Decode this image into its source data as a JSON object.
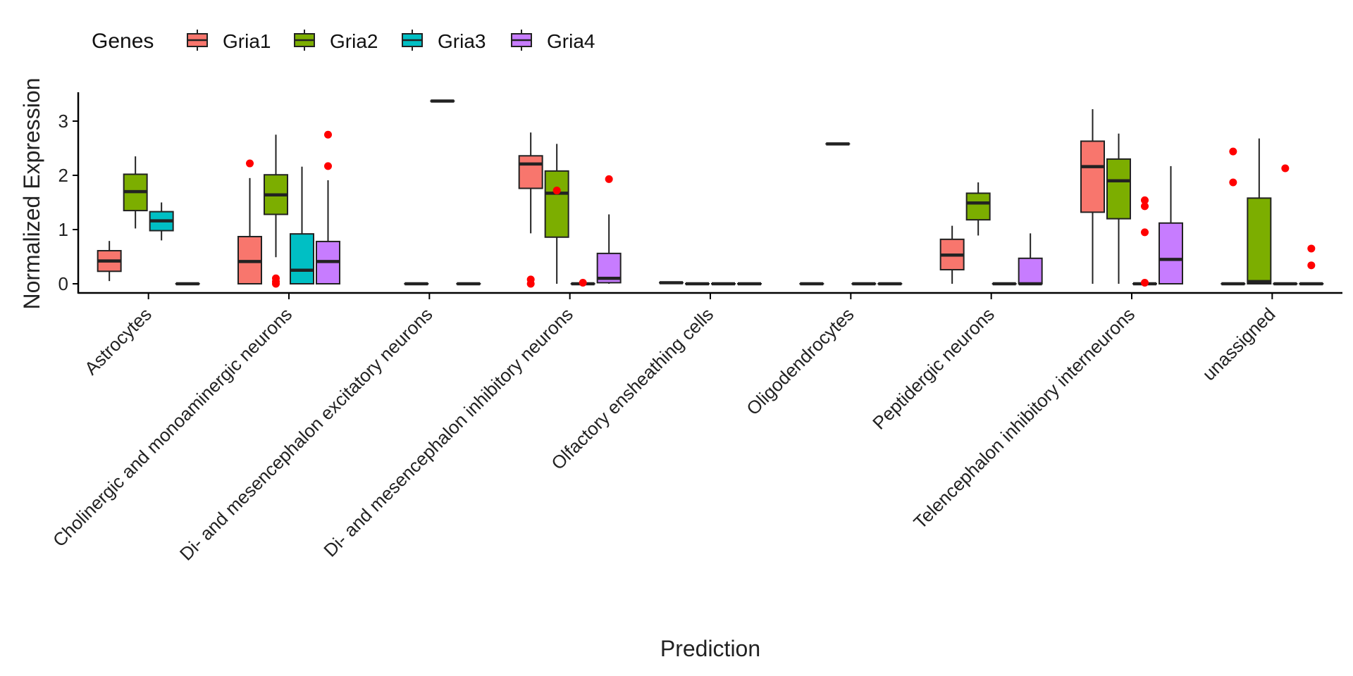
{
  "chart_data": {
    "type": "boxplot",
    "xlabel": "Prediction",
    "ylabel": "Normalized Expression",
    "ylim": [
      -0.17,
      3.55
    ],
    "yticks": [
      0,
      1,
      2,
      3
    ],
    "legend": {
      "title": "Genes",
      "position": "top-left"
    },
    "categories": [
      "Astrocytes",
      "Cholinergic and monoaminergic neurons",
      "Di- and mesencephalon excitatory neurons",
      "Di- and mesencephalon inhibitory neurons",
      "Olfactory ensheathing cells",
      "Oligodendrocytes",
      "Peptidergic neurons",
      "Telencephalon inhibitory interneurons",
      "unassigned"
    ],
    "series": [
      {
        "name": "Gria1",
        "color": "#F8766D",
        "boxes": [
          {
            "min": 0.05,
            "q1": 0.23,
            "median": 0.42,
            "q3": 0.61,
            "max": 0.79,
            "outliers": []
          },
          {
            "min": 0.0,
            "q1": 0.0,
            "median": 0.41,
            "q3": 0.87,
            "max": 1.95,
            "outliers": [
              2.22
            ]
          },
          null,
          {
            "min": 0.93,
            "q1": 1.76,
            "median": 2.21,
            "q3": 2.36,
            "max": 2.79,
            "outliers": [
              0.0,
              0.08
            ]
          },
          {
            "min": 0.02,
            "q1": 0.02,
            "median": 0.02,
            "q3": 0.02,
            "max": 0.02,
            "outliers": []
          },
          {
            "min": 0.0,
            "q1": 0.0,
            "median": 0.0,
            "q3": 0.0,
            "max": 0.0,
            "outliers": []
          },
          {
            "min": 0.0,
            "q1": 0.26,
            "median": 0.53,
            "q3": 0.82,
            "max": 1.07,
            "outliers": []
          },
          {
            "min": 0.0,
            "q1": 1.32,
            "median": 2.16,
            "q3": 2.63,
            "max": 3.22,
            "outliers": []
          },
          {
            "min": 0.0,
            "q1": 0.0,
            "median": 0.0,
            "q3": 0.0,
            "max": 0.0,
            "outliers": [
              1.87,
              2.44
            ]
          }
        ]
      },
      {
        "name": "Gria2",
        "color": "#7CAE00",
        "boxes": [
          {
            "min": 1.02,
            "q1": 1.35,
            "median": 1.7,
            "q3": 2.02,
            "max": 2.35,
            "outliers": []
          },
          {
            "min": 0.49,
            "q1": 1.28,
            "median": 1.64,
            "q3": 2.01,
            "max": 2.75,
            "outliers": [
              0.0,
              0.04,
              0.1
            ]
          },
          {
            "min": 0.0,
            "q1": 0.0,
            "median": 0.0,
            "q3": 0.0,
            "max": 0.0,
            "outliers": []
          },
          {
            "min": 0.0,
            "q1": 0.86,
            "median": 1.67,
            "q3": 2.08,
            "max": 2.58,
            "outliers": [
              1.72
            ]
          },
          {
            "min": 0.0,
            "q1": 0.0,
            "median": 0.0,
            "q3": 0.0,
            "max": 0.0,
            "outliers": []
          },
          {
            "min": 2.58,
            "q1": 2.58,
            "median": 2.58,
            "q3": 2.58,
            "max": 2.58,
            "outliers": []
          },
          {
            "min": 0.89,
            "q1": 1.18,
            "median": 1.49,
            "q3": 1.67,
            "max": 1.87,
            "outliers": []
          },
          {
            "min": 0.0,
            "q1": 1.2,
            "median": 1.9,
            "q3": 2.3,
            "max": 2.77,
            "outliers": []
          },
          {
            "min": 0.0,
            "q1": 0.0,
            "median": 0.04,
            "q3": 1.58,
            "max": 2.68,
            "outliers": []
          }
        ]
      },
      {
        "name": "Gria3",
        "color": "#00BFC4",
        "boxes": [
          {
            "min": 0.8,
            "q1": 0.98,
            "median": 1.16,
            "q3": 1.33,
            "max": 1.5,
            "outliers": []
          },
          {
            "min": 0.0,
            "q1": 0.0,
            "median": 0.25,
            "q3": 0.92,
            "max": 2.16,
            "outliers": []
          },
          {
            "min": 3.37,
            "q1": 3.37,
            "median": 3.37,
            "q3": 3.37,
            "max": 3.37,
            "outliers": []
          },
          {
            "min": 0.0,
            "q1": 0.0,
            "median": 0.0,
            "q3": 0.0,
            "max": 0.0,
            "outliers": [
              0.02
            ]
          },
          {
            "min": 0.0,
            "q1": 0.0,
            "median": 0.0,
            "q3": 0.0,
            "max": 0.0,
            "outliers": []
          },
          {
            "min": 0.0,
            "q1": 0.0,
            "median": 0.0,
            "q3": 0.0,
            "max": 0.0,
            "outliers": []
          },
          {
            "min": 0.0,
            "q1": 0.0,
            "median": 0.0,
            "q3": 0.0,
            "max": 0.0,
            "outliers": []
          },
          {
            "min": 0.0,
            "q1": 0.0,
            "median": 0.0,
            "q3": 0.0,
            "max": 0.0,
            "outliers": [
              0.02,
              0.95,
              1.43,
              1.54
            ]
          },
          {
            "min": 0.0,
            "q1": 0.0,
            "median": 0.0,
            "q3": 0.0,
            "max": 0.0,
            "outliers": [
              2.13
            ]
          }
        ]
      },
      {
        "name": "Gria4",
        "color": "#C77CFF",
        "boxes": [
          {
            "min": 0.0,
            "q1": 0.0,
            "median": 0.0,
            "q3": 0.0,
            "max": 0.0,
            "outliers": []
          },
          {
            "min": 0.0,
            "q1": 0.0,
            "median": 0.41,
            "q3": 0.78,
            "max": 1.91,
            "outliers": [
              2.17,
              2.75
            ]
          },
          {
            "min": 0.0,
            "q1": 0.0,
            "median": 0.0,
            "q3": 0.0,
            "max": 0.0,
            "outliers": []
          },
          {
            "min": 0.0,
            "q1": 0.02,
            "median": 0.1,
            "q3": 0.56,
            "max": 1.28,
            "outliers": [
              1.93
            ]
          },
          {
            "min": 0.0,
            "q1": 0.0,
            "median": 0.0,
            "q3": 0.0,
            "max": 0.0,
            "outliers": []
          },
          {
            "min": 0.0,
            "q1": 0.0,
            "median": 0.0,
            "q3": 0.0,
            "max": 0.0,
            "outliers": []
          },
          {
            "min": 0.0,
            "q1": 0.0,
            "median": 0.0,
            "q3": 0.47,
            "max": 0.93,
            "outliers": []
          },
          {
            "min": 0.0,
            "q1": 0.0,
            "median": 0.45,
            "q3": 1.12,
            "max": 2.17,
            "outliers": []
          },
          {
            "min": 0.0,
            "q1": 0.0,
            "median": 0.0,
            "q3": 0.0,
            "max": 0.0,
            "outliers": [
              0.34,
              0.65
            ]
          }
        ]
      }
    ],
    "outlier_color": "#FF0000",
    "grid": false
  }
}
